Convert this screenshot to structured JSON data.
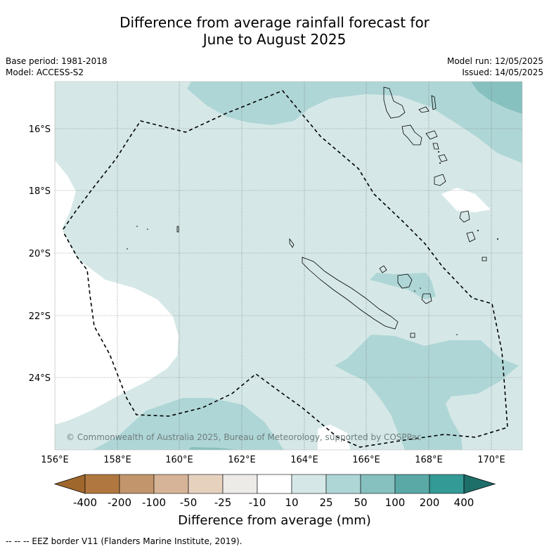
{
  "title_line1": "Difference from average rainfall forecast for",
  "title_line2": "June to August 2025",
  "base_period": "Base period: 1981-2018",
  "model": "Model: ACCESS-S2",
  "model_run": "Model run: 12/05/2025",
  "issued": "Issued: 14/05/2025",
  "copyright": "© Commonwealth of Australia 2025, Bureau of Meteorology, supported by COSPPac",
  "lon_labels": [
    "156°E",
    "158°E",
    "160°E",
    "162°E",
    "164°E",
    "166°E",
    "168°E",
    "170°E"
  ],
  "lat_labels": [
    "16°S",
    "18°S",
    "20°S",
    "22°S",
    "24°S"
  ],
  "colorbar": {
    "labels": [
      "-400",
      "-200",
      "-100",
      "-50",
      "-25",
      "-10",
      "10",
      "25",
      "50",
      "100",
      "200",
      "400"
    ],
    "colors": [
      "#a0672c",
      "#b07840",
      "#c3956c",
      "#d6b497",
      "#e6d1bf",
      "#ecebe8",
      "#ffffff",
      "#d5e8e7",
      "#afd6d6",
      "#86c0bf",
      "#5aa9a7",
      "#339a96",
      "#1e6e6a"
    ],
    "title": "Difference from average (mm)"
  },
  "footnote": "--  --  -- EEZ border V11 (Flanders Marine Institute, 2019)."
}
